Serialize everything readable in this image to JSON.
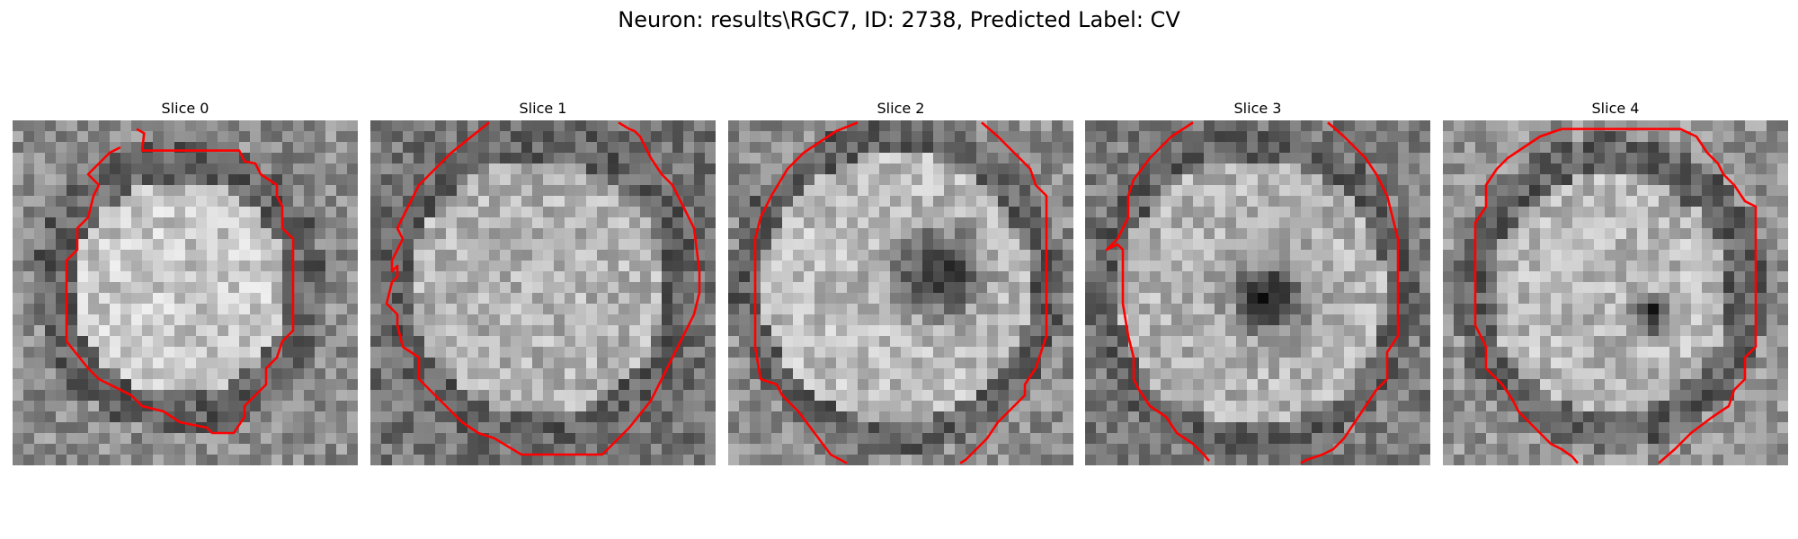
{
  "figure": {
    "title": "Neuron: results\\RGC7, ID: 2738, Predicted Label: CV",
    "contour_color": "#ff0000",
    "colormap": "gray"
  },
  "slices": [
    {
      "title": "Slice 0"
    },
    {
      "title": "Slice 1"
    },
    {
      "title": "Slice 2"
    },
    {
      "title": "Slice 3"
    },
    {
      "title": "Slice 4"
    }
  ]
}
